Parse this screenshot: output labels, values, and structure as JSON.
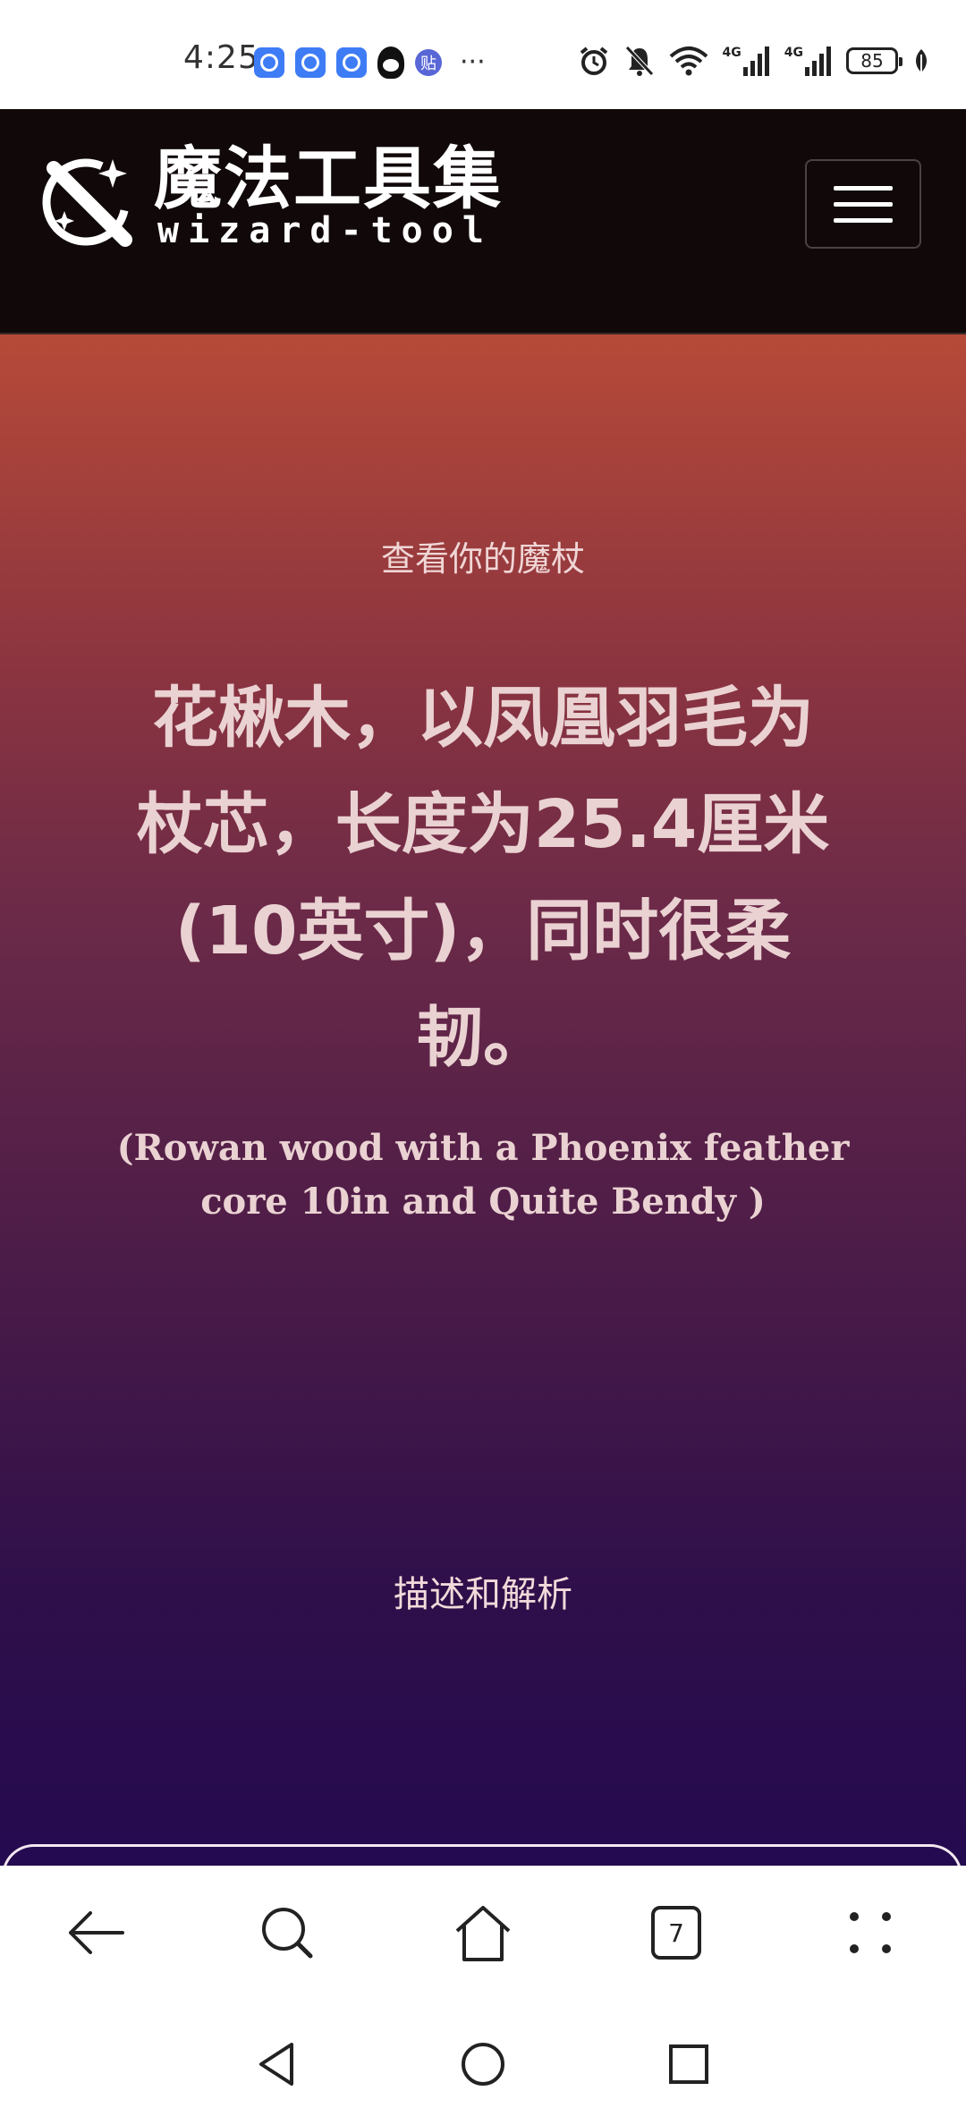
{
  "status_bar": {
    "time": "4:25",
    "notification_icons": [
      "app-notification-icon",
      "app-notification-icon",
      "app-notification-icon",
      "qq-icon",
      "tieba-icon"
    ],
    "more_indicator": "···",
    "tieba_glyph": "贴",
    "network_label_1": "4G",
    "network_label_2": "4G",
    "battery_level": "85"
  },
  "header": {
    "logo_title": "魔法工具集",
    "logo_subtitle": "wizard-tool"
  },
  "hero": {
    "eyebrow": "查看你的魔杖",
    "wand_title": "花楸木，以凤凰羽毛为杖芯，长度为25.4厘米(10英寸)，同时很柔韧。",
    "wand_title_en": "(Rowan wood with a Phoenix feather core 10in and Quite Bendy )",
    "section_link": "描述和解析"
  },
  "browser_toolbar": {
    "tab_count": "7"
  },
  "colors": {
    "header_bg": "#110909",
    "hero_top": "#b64a38",
    "hero_bottom": "#240a50",
    "hero_text": "#ead2d2"
  }
}
